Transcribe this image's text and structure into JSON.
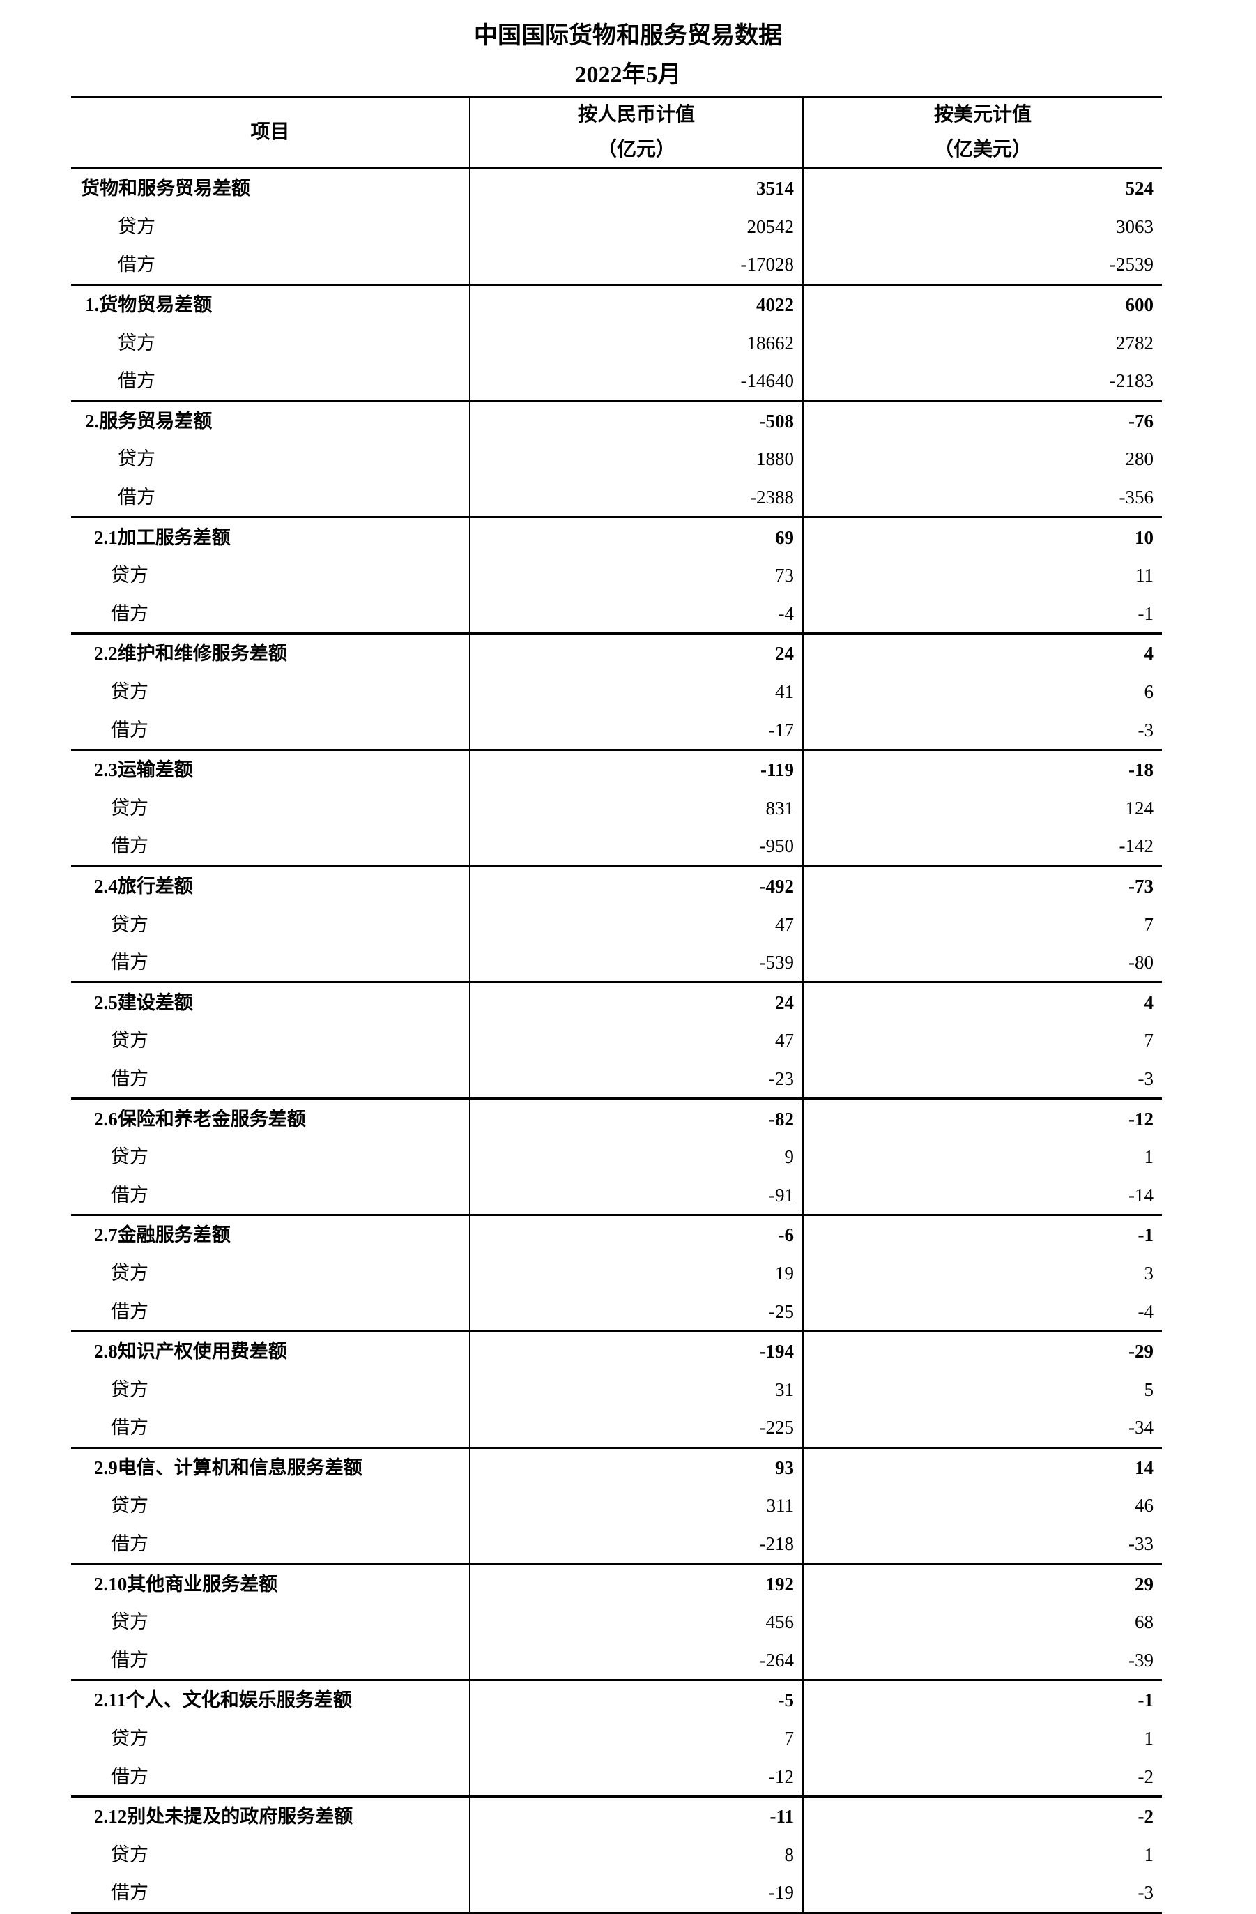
{
  "title": "中国国际货物和服务贸易数据",
  "subtitle": "2022年5月",
  "columns": {
    "item": "项目",
    "rmb": "按人民币计值",
    "rmb_unit": "（亿元）",
    "usd": "按美元计值",
    "usd_unit": "（亿美元）"
  },
  "credit_label": "贷方",
  "debit_label": "借方",
  "groups": [
    {
      "label": "货物和服务贸易差额",
      "level": 0,
      "rows": [
        [
          "3514",
          "524"
        ],
        [
          "20542",
          "3063"
        ],
        [
          "-17028",
          "-2539"
        ]
      ]
    },
    {
      "label": "1.货物贸易差额",
      "level": 1,
      "rows": [
        [
          "4022",
          "600"
        ],
        [
          "18662",
          "2782"
        ],
        [
          "-14640",
          "-2183"
        ]
      ]
    },
    {
      "label": "2.服务贸易差额",
      "level": 1,
      "rows": [
        [
          "-508",
          "-76"
        ],
        [
          "1880",
          "280"
        ],
        [
          "-2388",
          "-356"
        ]
      ]
    },
    {
      "label": "2.1加工服务差额",
      "level": 2,
      "rows": [
        [
          "69",
          "10"
        ],
        [
          "73",
          "11"
        ],
        [
          "-4",
          "-1"
        ]
      ]
    },
    {
      "label": "2.2维护和维修服务差额",
      "level": 2,
      "rows": [
        [
          "24",
          "4"
        ],
        [
          "41",
          "6"
        ],
        [
          "-17",
          "-3"
        ]
      ]
    },
    {
      "label": "2.3运输差额",
      "level": 2,
      "rows": [
        [
          "-119",
          "-18"
        ],
        [
          "831",
          "124"
        ],
        [
          "-950",
          "-142"
        ]
      ]
    },
    {
      "label": "2.4旅行差额",
      "level": 2,
      "rows": [
        [
          "-492",
          "-73"
        ],
        [
          "47",
          "7"
        ],
        [
          "-539",
          "-80"
        ]
      ]
    },
    {
      "label": "2.5建设差额",
      "level": 2,
      "rows": [
        [
          "24",
          "4"
        ],
        [
          "47",
          "7"
        ],
        [
          "-23",
          "-3"
        ]
      ]
    },
    {
      "label": "2.6保险和养老金服务差额",
      "level": 2,
      "rows": [
        [
          "-82",
          "-12"
        ],
        [
          "9",
          "1"
        ],
        [
          "-91",
          "-14"
        ]
      ]
    },
    {
      "label": "2.7金融服务差额",
      "level": 2,
      "rows": [
        [
          "-6",
          "-1"
        ],
        [
          "19",
          "3"
        ],
        [
          "-25",
          "-4"
        ]
      ]
    },
    {
      "label": "2.8知识产权使用费差额",
      "level": 2,
      "rows": [
        [
          "-194",
          "-29"
        ],
        [
          "31",
          "5"
        ],
        [
          "-225",
          "-34"
        ]
      ]
    },
    {
      "label": "2.9电信、计算机和信息服务差额",
      "level": 2,
      "rows": [
        [
          "93",
          "14"
        ],
        [
          "311",
          "46"
        ],
        [
          "-218",
          "-33"
        ]
      ]
    },
    {
      "label": "2.10其他商业服务差额",
      "level": 2,
      "rows": [
        [
          "192",
          "29"
        ],
        [
          "456",
          "68"
        ],
        [
          "-264",
          "-39"
        ]
      ]
    },
    {
      "label": "2.11个人、文化和娱乐服务差额",
      "level": 2,
      "rows": [
        [
          "-5",
          "-1"
        ],
        [
          "7",
          "1"
        ],
        [
          "-12",
          "-2"
        ]
      ]
    },
    {
      "label": "2.12别处未提及的政府服务差额",
      "level": 2,
      "rows": [
        [
          "-11",
          "-2"
        ],
        [
          "8",
          "1"
        ],
        [
          "-19",
          "-3"
        ]
      ]
    }
  ]
}
